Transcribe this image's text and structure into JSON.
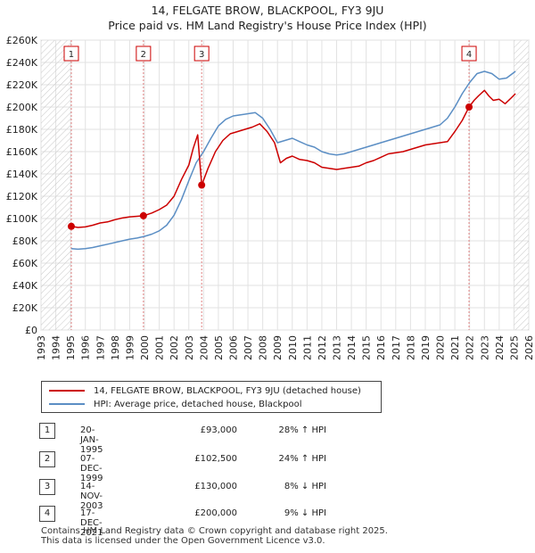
{
  "chart_data": {
    "type": "line",
    "title": "14, FELGATE BROW, BLACKPOOL, FY3 9JU",
    "subtitle": "Price paid vs. HM Land Registry's House Price Index (HPI)",
    "xlim": [
      1993,
      2026
    ],
    "ylim": [
      0,
      260000
    ],
    "y_ticks": [
      0,
      20000,
      40000,
      60000,
      80000,
      100000,
      120000,
      140000,
      160000,
      180000,
      200000,
      220000,
      240000,
      260000
    ],
    "y_tick_labels": [
      "£0",
      "£20K",
      "£40K",
      "£60K",
      "£80K",
      "£100K",
      "£120K",
      "£140K",
      "£160K",
      "£180K",
      "£200K",
      "£220K",
      "£240K",
      "£260K"
    ],
    "x_ticks": [
      1993,
      1994,
      1995,
      1996,
      1997,
      1998,
      1999,
      2000,
      2001,
      2002,
      2003,
      2004,
      2005,
      2006,
      2007,
      2008,
      2009,
      2010,
      2011,
      2012,
      2013,
      2014,
      2015,
      2016,
      2017,
      2018,
      2019,
      2020,
      2021,
      2022,
      2023,
      2024,
      2025,
      2026
    ],
    "x_tick_labels": [
      "1993",
      "1994",
      "1995",
      "1996",
      "1997",
      "1998",
      "1999",
      "2000",
      "2001",
      "2002",
      "2003",
      "2004",
      "2005",
      "2006",
      "2007",
      "2008",
      "2009",
      "2010",
      "2011",
      "2012",
      "2013",
      "2014",
      "2015",
      "2016",
      "2017",
      "2018",
      "2019",
      "2020",
      "2021",
      "2022",
      "2023",
      "2024",
      "2025",
      "2026"
    ],
    "grid": true,
    "hatched_regions": [
      [
        1993,
        1995.05
      ],
      [
        2025.0,
        2026
      ]
    ],
    "series": [
      {
        "name": "14, FELGATE BROW, BLACKPOOL, FY3 9JU (detached house)",
        "color": "#cc0000",
        "x": [
          1995.05,
          1995.5,
          1996.0,
          1996.5,
          1997.0,
          1997.5,
          1998.0,
          1998.5,
          1999.0,
          1999.5,
          1999.93,
          2000.5,
          2001.0,
          2001.5,
          2002.0,
          2002.5,
          2003.0,
          2003.3,
          2003.6,
          2003.87,
          2004.3,
          2004.8,
          2005.3,
          2005.8,
          2006.3,
          2006.8,
          2007.3,
          2007.8,
          2008.3,
          2008.8,
          2009.2,
          2009.6,
          2010.0,
          2010.5,
          2011.0,
          2011.5,
          2012.0,
          2012.5,
          2013.0,
          2013.5,
          2014.0,
          2014.5,
          2015.0,
          2015.5,
          2016.0,
          2016.5,
          2017.0,
          2017.5,
          2018.0,
          2018.5,
          2019.0,
          2019.5,
          2020.0,
          2020.5,
          2021.0,
          2021.5,
          2021.96,
          2022.3,
          2022.6,
          2023.0,
          2023.3,
          2023.6,
          2024.0,
          2024.4,
          2024.8,
          2025.1
        ],
        "values": [
          93000,
          92000,
          92500,
          94000,
          96000,
          97000,
          99000,
          100500,
          101500,
          102000,
          102500,
          105000,
          108000,
          112000,
          120000,
          135000,
          148000,
          163000,
          175000,
          130000,
          145000,
          160000,
          170000,
          176000,
          178000,
          180000,
          182000,
          185000,
          178000,
          168000,
          150000,
          154000,
          156000,
          153000,
          152000,
          150000,
          146000,
          145000,
          144000,
          145000,
          146000,
          147000,
          150000,
          152000,
          155000,
          158000,
          159000,
          160000,
          162000,
          164000,
          166000,
          167000,
          168000,
          169000,
          178000,
          188000,
          200000,
          206000,
          210000,
          215000,
          210000,
          206000,
          207000,
          203000,
          208000,
          212000
        ]
      },
      {
        "name": "HPI: Average price, detached house, Blackpool",
        "color": "#5b8ec4",
        "x": [
          1995.05,
          1995.5,
          1996.0,
          1996.5,
          1997.0,
          1997.5,
          1998.0,
          1998.5,
          1999.0,
          1999.5,
          2000.0,
          2000.5,
          2001.0,
          2001.5,
          2002.0,
          2002.5,
          2003.0,
          2003.5,
          2004.0,
          2004.5,
          2005.0,
          2005.5,
          2006.0,
          2006.5,
          2007.0,
          2007.5,
          2008.0,
          2008.5,
          2009.0,
          2009.5,
          2010.0,
          2010.5,
          2011.0,
          2011.5,
          2012.0,
          2012.5,
          2013.0,
          2013.5,
          2014.0,
          2014.5,
          2015.0,
          2015.5,
          2016.0,
          2016.5,
          2017.0,
          2017.5,
          2018.0,
          2018.5,
          2019.0,
          2019.5,
          2020.0,
          2020.5,
          2021.0,
          2021.5,
          2022.0,
          2022.5,
          2023.0,
          2023.5,
          2024.0,
          2024.5,
          2025.1
        ],
        "values": [
          73000,
          72500,
          73000,
          74000,
          75500,
          77000,
          78500,
          80000,
          81500,
          82500,
          84000,
          86000,
          89000,
          94000,
          103000,
          117000,
          134000,
          150000,
          160000,
          172000,
          183000,
          189000,
          192000,
          193000,
          194000,
          195000,
          190000,
          180000,
          168000,
          170000,
          172000,
          169000,
          166000,
          164000,
          160000,
          158000,
          157000,
          158000,
          160000,
          162000,
          164000,
          166000,
          168000,
          170000,
          172000,
          174000,
          176000,
          178000,
          180000,
          182000,
          184000,
          190000,
          200000,
          212000,
          222000,
          230000,
          232000,
          230000,
          225000,
          226000,
          232000
        ]
      }
    ],
    "transactions": [
      {
        "num": "1",
        "x": 1995.05,
        "value": 93000
      },
      {
        "num": "2",
        "x": 1999.93,
        "value": 102500
      },
      {
        "num": "3",
        "x": 2003.87,
        "value": 130000
      },
      {
        "num": "4",
        "x": 2021.96,
        "value": 200000
      }
    ]
  },
  "legend": {
    "property_label": "14, FELGATE BROW, BLACKPOOL, FY3 9JU (detached house)",
    "hpi_label": "HPI: Average price, detached house, Blackpool",
    "property_color": "#cc0000",
    "hpi_color": "#5b8ec4"
  },
  "table": {
    "rows": [
      {
        "num": "1",
        "date": "20-JAN-1995",
        "price": "£93,000",
        "hpi": "28% ↑ HPI"
      },
      {
        "num": "2",
        "date": "07-DEC-1999",
        "price": "£102,500",
        "hpi": "24% ↑ HPI"
      },
      {
        "num": "3",
        "date": "14-NOV-2003",
        "price": "£130,000",
        "hpi": "8% ↓ HPI"
      },
      {
        "num": "4",
        "date": "17-DEC-2021",
        "price": "£200,000",
        "hpi": "9% ↓ HPI"
      }
    ]
  },
  "footer": {
    "line1": "Contains HM Land Registry data © Crown copyright and database right 2025.",
    "line2": "This data is licensed under the Open Government Licence v3.0."
  }
}
